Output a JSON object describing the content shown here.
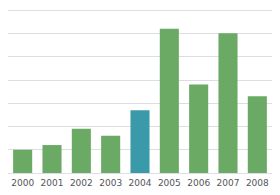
{
  "chart_data": {
    "type": "bar",
    "categories": [
      "2000",
      "2001",
      "2002",
      "2003",
      "2004",
      "2005",
      "2006",
      "2007",
      "2008"
    ],
    "values": [
      10,
      12,
      19,
      16,
      27,
      62,
      38,
      60,
      33
    ],
    "colors": [
      "#6aaa64",
      "#6aaa64",
      "#6aaa64",
      "#6aaa64",
      "#3a9aaa",
      "#6aaa64",
      "#6aaa64",
      "#6aaa64",
      "#6aaa64"
    ],
    "ylim": [
      0,
      70
    ],
    "yticks": [
      0,
      10,
      20,
      30,
      40,
      50,
      60,
      70
    ],
    "grid": true,
    "tick_labels": "x"
  }
}
